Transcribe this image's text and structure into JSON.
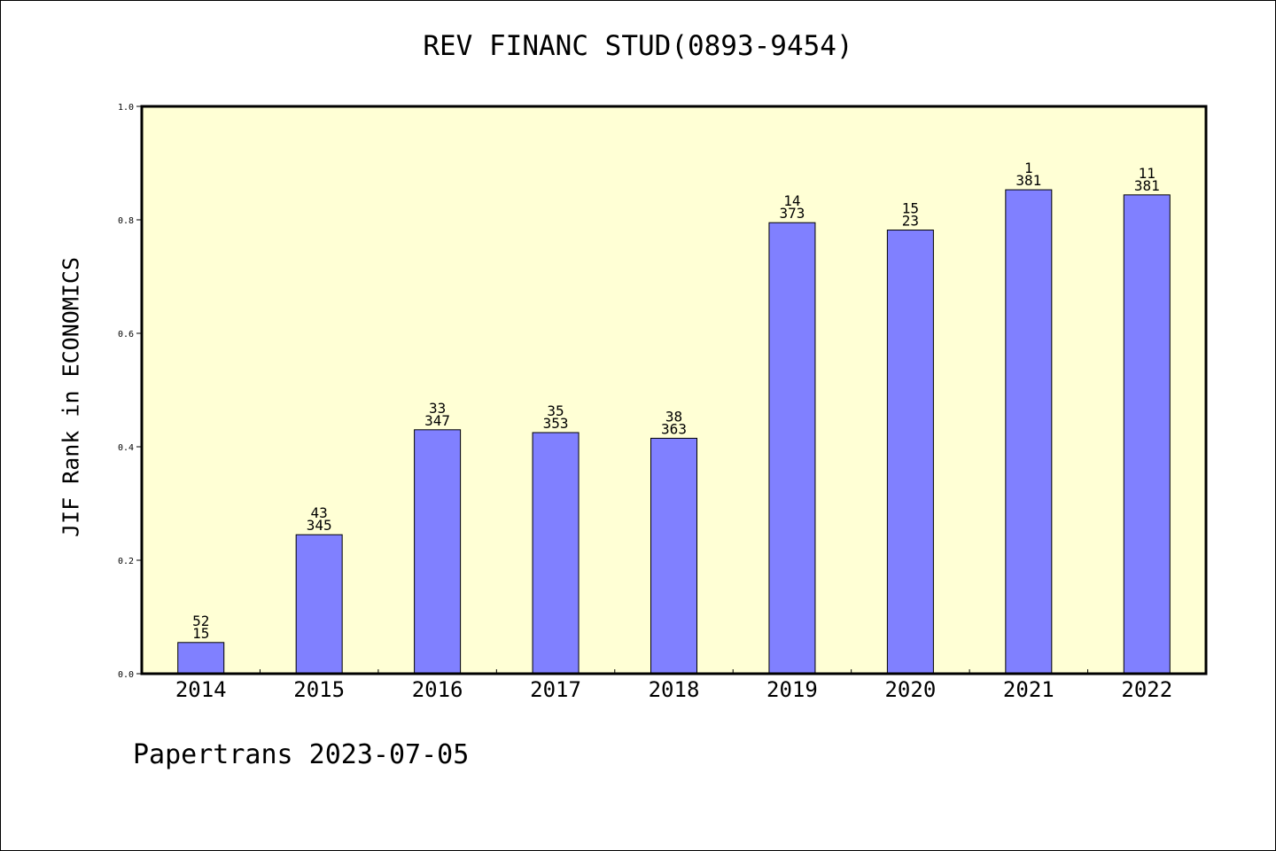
{
  "colors": {
    "background": "#ffffff",
    "plot_background": "#ffffd5",
    "bar_fill": "#8080ff",
    "bar_stroke": "#000000",
    "axis": "#000000"
  },
  "footer": {
    "text": "Papertrans 2023-07-05"
  },
  "chart_data": {
    "type": "bar",
    "title": "REV FINANC STUD(0893-9454)",
    "xlabel": "",
    "ylabel": "JIF Rank in ECONOMICS",
    "ylim": [
      0,
      1.0
    ],
    "yticks": [
      "0.0",
      "0.2",
      "0.4",
      "0.6",
      "0.8",
      "1.0"
    ],
    "ytick_values": [
      0,
      0.2,
      0.4,
      0.6,
      0.8,
      1.0
    ],
    "grid": false,
    "categories": [
      "2014",
      "2015",
      "2016",
      "2017",
      "2018",
      "2019",
      "2020",
      "2021",
      "2022"
    ],
    "values": [
      0.055,
      0.245,
      0.43,
      0.425,
      0.415,
      0.795,
      0.782,
      0.853,
      0.844
    ],
    "annotations": [
      [
        "52",
        "15"
      ],
      [
        "43",
        "345"
      ],
      [
        "33",
        "347"
      ],
      [
        "35",
        "353"
      ],
      [
        "38",
        "363"
      ],
      [
        "14",
        "373"
      ],
      [
        "15",
        "23"
      ],
      [
        "1",
        "381"
      ],
      [
        "11",
        "381"
      ]
    ]
  }
}
